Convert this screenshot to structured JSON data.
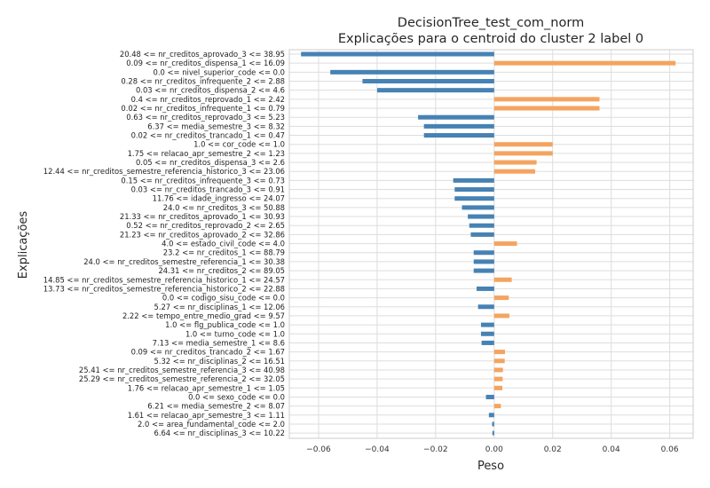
{
  "chart_data": {
    "type": "bar",
    "orientation": "horizontal",
    "title": "DecisionTree_test_com_norm",
    "subtitle": "Explicações para o centroid do cluster 2 label 0",
    "xlabel": "Peso",
    "ylabel": "Explicações",
    "xlim": [
      -0.07,
      0.068
    ],
    "xticks": [
      -0.06,
      -0.04,
      -0.02,
      0.0,
      0.02,
      0.04,
      0.06
    ],
    "xtick_labels": [
      "−0.06",
      "−0.04",
      "−0.02",
      "0.00",
      "0.02",
      "0.04",
      "0.06"
    ],
    "grid": true,
    "colors": {
      "positive": "#f4a460",
      "negative": "#4682b4"
    },
    "categories": [
      "20.48 <= nr_creditos_aprovado_3 <= 38.95",
      "0.09 <= nr_creditos_dispensa_1 <= 16.09",
      "0.0 <= nivel_superior_code <= 0.0",
      "0.28 <= nr_creditos_infrequente_2 <= 2.88",
      "0.03 <= nr_creditos_dispensa_2 <= 4.6",
      "0.4 <= nr_creditos_reprovado_1 <= 2.42",
      "0.02 <= nr_creditos_infrequente_1 <= 0.79",
      "0.63 <= nr_creditos_reprovado_3 <= 5.23",
      "6.37 <= media_semestre_3 <= 8.32",
      "0.02 <= nr_creditos_trancado_1 <= 0.47",
      "1.0 <= cor_code <= 1.0",
      "1.75 <= relacao_apr_semestre_2 <= 1.23",
      "0.05 <= nr_creditos_dispensa_3 <= 2.6",
      "12.44 <= nr_creditos_semestre_referencia_historico_3 <= 23.06",
      "0.15 <= nr_creditos_infrequente_3 <= 0.73",
      "0.03 <= nr_creditos_trancado_3 <= 0.91",
      "11.76 <= idade_ingresso <= 24.07",
      "24.0 <= nr_creditos_3 <= 50.88",
      "21.33 <= nr_creditos_aprovado_1 <= 30.93",
      "0.52 <= nr_creditos_reprovado_2 <= 2.65",
      "21.23 <= nr_creditos_aprovado_2 <= 32.86",
      "4.0 <= estado_civil_code <= 4.0",
      "23.2 <= nr_creditos_1 <= 88.79",
      "24.0 <= nr_creditos_semestre_referencia_1 <= 30.38",
      "24.31 <= nr_creditos_2 <= 89.05",
      "14.85 <= nr_creditos_semestre_referencia_historico_1 <= 24.57",
      "13.73 <= nr_creditos_semestre_referencia_historico_2 <= 22.88",
      "0.0 <= codigo_sisu_code <= 0.0",
      "5.27 <= nr_disciplinas_1 <= 12.06",
      "2.22 <= tempo_entre_medio_grad <= 9.57",
      "1.0 <= flg_publica_code <= 1.0",
      "1.0 <= turno_code <= 1.0",
      "7.13 <= media_semestre_1 <= 8.6",
      "0.09 <= nr_creditos_trancado_2 <= 1.67",
      "5.32 <= nr_disciplinas_2 <= 16.51",
      "25.41 <= nr_creditos_semestre_referencia_3 <= 40.98",
      "25.29 <= nr_creditos_semestre_referencia_2 <= 32.05",
      "1.76 <= relacao_apr_semestre_1 <= 1.05",
      "0.0 <= sexo_code <= 0.0",
      "6.21 <= media_semestre_2 <= 8.07",
      "1.61 <= relacao_apr_semestre_3 <= 1.11",
      "2.0 <= area_fundamental_code <= 2.0",
      "6.64 <= nr_disciplinas_3 <= 10.22"
    ],
    "values": [
      -0.066,
      0.062,
      -0.056,
      -0.045,
      -0.04,
      0.036,
      0.036,
      -0.026,
      -0.024,
      -0.024,
      0.02,
      0.02,
      0.0145,
      0.014,
      -0.014,
      -0.0135,
      -0.0135,
      -0.011,
      -0.009,
      -0.0085,
      -0.008,
      0.0078,
      -0.007,
      -0.007,
      -0.007,
      0.006,
      -0.006,
      0.005,
      -0.0055,
      0.0052,
      -0.0045,
      -0.0045,
      -0.0043,
      0.0037,
      0.0036,
      0.003,
      0.0029,
      0.0028,
      -0.0028,
      0.0023,
      -0.0018,
      -0.0007,
      -0.0006
    ]
  }
}
